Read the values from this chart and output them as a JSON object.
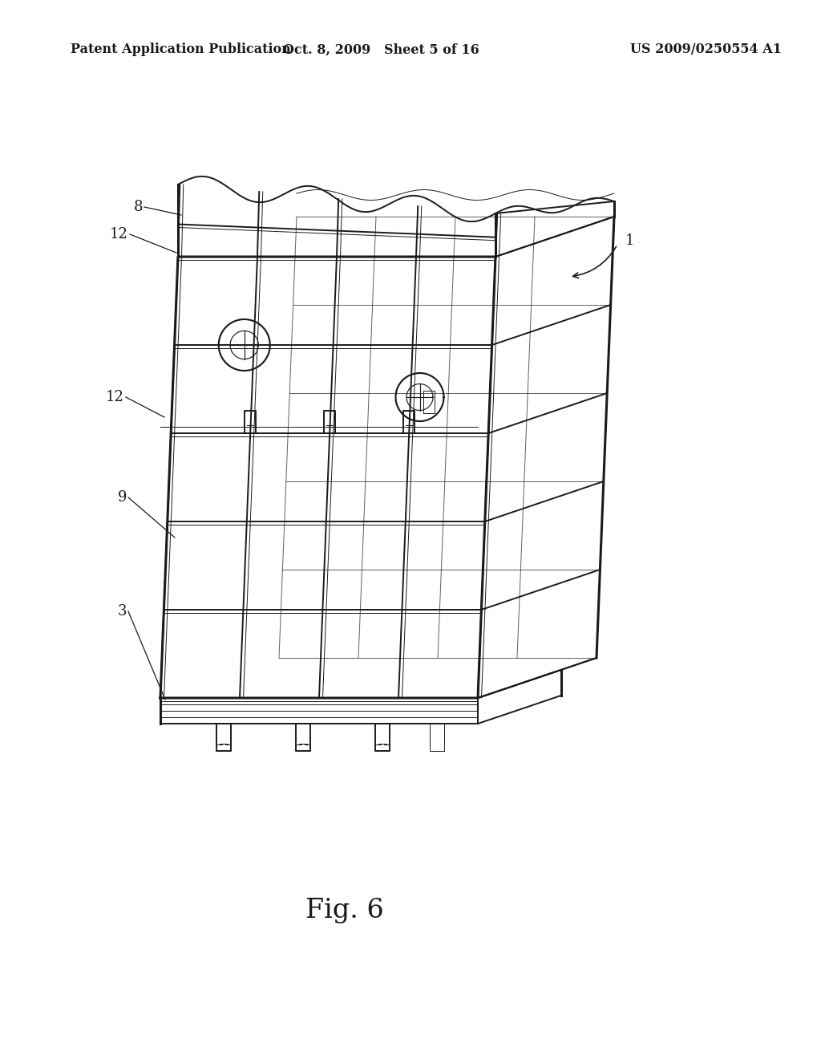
{
  "background_color": "#ffffff",
  "line_color": "#1a1a1a",
  "lw_thick": 2.2,
  "lw_med": 1.4,
  "lw_thin": 0.7,
  "header_left": "Patent Application Publication",
  "header_center": "Oct. 8, 2009   Sheet 5 of 16",
  "header_right": "US 2009/0250554 A1",
  "header_fontsize": 11.5,
  "figure_label": "Fig. 6",
  "figure_label_fontsize": 24,
  "label_fontsize": 13
}
